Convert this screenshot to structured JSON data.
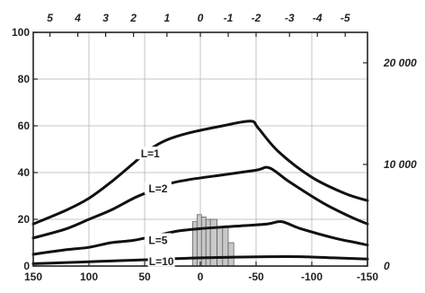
{
  "chart_data": {
    "type": "line",
    "title": "",
    "xlabel": "",
    "ylabel": "",
    "xlim": [
      150,
      -150
    ],
    "ylim": [
      0,
      100
    ],
    "x_ticks": [
      150,
      100,
      50,
      0,
      -50,
      -100,
      -150
    ],
    "x_tick_labels": [
      "150",
      "100",
      "50",
      "0",
      "-50",
      "-100",
      "-150"
    ],
    "y_ticks": [
      0,
      20,
      40,
      60,
      80,
      100
    ],
    "y_tick_labels": [
      "0",
      "20",
      "40",
      "60",
      "80",
      "100"
    ],
    "top_axis": {
      "ticks": [
        135,
        110,
        85,
        60,
        30,
        0,
        -25,
        -50,
        -80,
        -105,
        -130
      ],
      "labels": [
        "5",
        "4",
        "3",
        "2",
        "1",
        "0",
        "-1",
        "-2",
        "-3",
        "-4",
        "-5"
      ]
    },
    "right_axis": {
      "ylim": [
        0,
        23000
      ],
      "ticks": [
        0,
        10000,
        20000
      ],
      "labels": [
        "0",
        "10 000",
        "20 000"
      ]
    },
    "grid": true,
    "series": [
      {
        "name": "L=1",
        "label_at": [
          45,
          48
        ],
        "points": [
          [
            150,
            18
          ],
          [
            120,
            24
          ],
          [
            100,
            29
          ],
          [
            80,
            36
          ],
          [
            60,
            44
          ],
          [
            45,
            50
          ],
          [
            30,
            54
          ],
          [
            10,
            57
          ],
          [
            -20,
            60
          ],
          [
            -45,
            62
          ],
          [
            -52,
            59
          ],
          [
            -70,
            49
          ],
          [
            -100,
            38
          ],
          [
            -130,
            31
          ],
          [
            -150,
            28
          ]
        ]
      },
      {
        "name": "L=2",
        "label_at": [
          38,
          33
        ],
        "points": [
          [
            150,
            12
          ],
          [
            120,
            16
          ],
          [
            100,
            20
          ],
          [
            80,
            24
          ],
          [
            60,
            29
          ],
          [
            45,
            32
          ],
          [
            30,
            35
          ],
          [
            10,
            37
          ],
          [
            -20,
            39
          ],
          [
            -50,
            41
          ],
          [
            -62,
            42
          ],
          [
            -80,
            36
          ],
          [
            -110,
            27
          ],
          [
            -135,
            21
          ],
          [
            -150,
            18
          ]
        ]
      },
      {
        "name": "L=5",
        "label_at": [
          38,
          11
        ],
        "points": [
          [
            150,
            5
          ],
          [
            120,
            7
          ],
          [
            100,
            8
          ],
          [
            80,
            10
          ],
          [
            60,
            11
          ],
          [
            40,
            13
          ],
          [
            20,
            15
          ],
          [
            0,
            16
          ],
          [
            -30,
            17
          ],
          [
            -60,
            18
          ],
          [
            -73,
            19
          ],
          [
            -90,
            16
          ],
          [
            -120,
            12
          ],
          [
            -140,
            10
          ],
          [
            -150,
            9
          ]
        ]
      },
      {
        "name": "L=10",
        "label_at": [
          35,
          2
        ],
        "points": [
          [
            150,
            1
          ],
          [
            120,
            1.5
          ],
          [
            90,
            2
          ],
          [
            60,
            2.5
          ],
          [
            30,
            3
          ],
          [
            0,
            3.5
          ],
          [
            -30,
            3.8
          ],
          [
            -60,
            4
          ],
          [
            -90,
            4
          ],
          [
            -120,
            3.5
          ],
          [
            -150,
            3
          ]
        ]
      }
    ],
    "histogram": {
      "bins": [
        [
          3,
          7,
          19
        ],
        [
          -1,
          3,
          22
        ],
        [
          -5,
          -1,
          21
        ],
        [
          -9,
          -5,
          20
        ],
        [
          -15,
          -9,
          20
        ],
        [
          -20,
          -15,
          17
        ],
        [
          -25,
          -20,
          17
        ],
        [
          -30,
          -25,
          10
        ]
      ],
      "fill": "#c8c8c8",
      "stroke": "#555555"
    }
  }
}
